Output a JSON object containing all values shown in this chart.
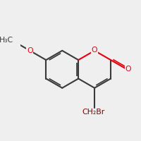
{
  "bg_color": "#f0eff0",
  "bond_color": "#3a3a3a",
  "oxygen_color": "#e8000e",
  "bromine_color": "#7a0000",
  "line_width": 1.5,
  "dpi": 100,
  "figsize": [
    2.0,
    2.0
  ],
  "xlim": [
    0.0,
    1.0
  ],
  "ylim": [
    0.05,
    1.05
  ]
}
